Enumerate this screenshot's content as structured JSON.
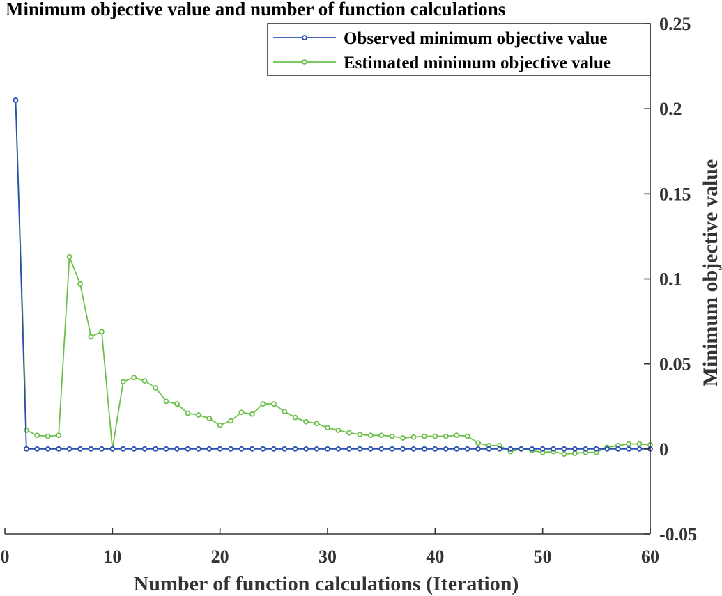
{
  "chart_data": {
    "type": "line",
    "title": "Minimum objective value and number of function calculations",
    "xlabel": "Number of function calculations (Iteration)",
    "ylabel": "Minimum objective value",
    "xlim": [
      0,
      60
    ],
    "ylim": [
      -0.05,
      0.25
    ],
    "xticks": [
      "0",
      "10",
      "20",
      "30",
      "40",
      "50",
      "60"
    ],
    "yticks": [
      "-0.05",
      "0",
      "0.05",
      "0.1",
      "0.15",
      "0.2",
      "0.25"
    ],
    "ytick_values": [
      -0.05,
      0,
      0.05,
      0.1,
      0.15,
      0.2,
      0.25
    ],
    "xtick_values": [
      0,
      10,
      20,
      30,
      40,
      50,
      60
    ],
    "y_axis_side": "right",
    "grid": false,
    "legend_position": "top-right",
    "x": [
      1,
      2,
      3,
      4,
      5,
      6,
      7,
      8,
      9,
      10,
      11,
      12,
      13,
      14,
      15,
      16,
      17,
      18,
      19,
      20,
      21,
      22,
      23,
      24,
      25,
      26,
      27,
      28,
      29,
      30,
      31,
      32,
      33,
      34,
      35,
      36,
      37,
      38,
      39,
      40,
      41,
      42,
      43,
      44,
      45,
      46,
      47,
      48,
      49,
      50,
      51,
      52,
      53,
      54,
      55,
      56,
      57,
      58,
      59,
      60
    ],
    "series": [
      {
        "name": "Observed minimum objective value",
        "color": "#2a4fb0",
        "values": [
          0.205,
          0,
          0,
          0,
          0,
          0,
          0,
          0,
          0,
          0,
          0,
          0,
          0,
          0,
          0,
          0,
          0,
          0,
          0,
          0,
          0,
          0,
          0,
          0,
          0,
          0,
          0,
          0,
          0,
          0,
          0,
          0,
          0,
          0,
          0,
          0,
          0,
          0,
          0,
          0,
          0,
          0,
          0,
          0,
          0,
          0,
          0,
          0,
          0,
          0,
          0,
          0,
          0,
          0,
          0,
          0,
          0,
          0,
          0,
          0
        ]
      },
      {
        "name": "Estimated minimum objective value",
        "color": "#6cc04a",
        "values": [
          0.205,
          0.011,
          0.008,
          0.0075,
          0.008,
          0.113,
          0.097,
          0.066,
          0.069,
          0,
          0.0395,
          0.042,
          0.04,
          0.036,
          0.028,
          0.0265,
          0.021,
          0.02,
          0.018,
          0.014,
          0.0165,
          0.0215,
          0.0205,
          0.0265,
          0.0265,
          0.022,
          0.0185,
          0.016,
          0.015,
          0.0125,
          0.011,
          0.0095,
          0.0085,
          0.008,
          0.008,
          0.0075,
          0.0065,
          0.007,
          0.0075,
          0.0075,
          0.0075,
          0.008,
          0.0075,
          0.0035,
          0.002,
          0.002,
          -0.0015,
          0,
          -0.001,
          -0.002,
          -0.0015,
          -0.003,
          -0.0025,
          -0.002,
          -0.002,
          0.001,
          0.002,
          0.003,
          0.003,
          0.0025
        ]
      }
    ]
  }
}
